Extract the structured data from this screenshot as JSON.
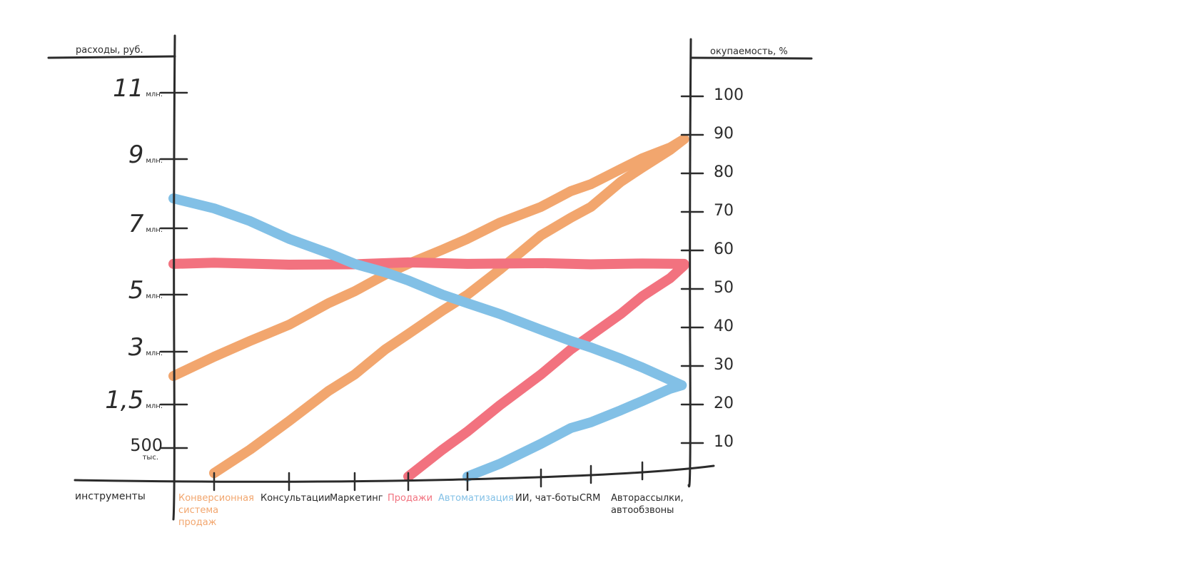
{
  "chart_data": {
    "type": "line",
    "left_axis": {
      "title": "расходы, руб.",
      "ticks": [
        {
          "value": "11",
          "unit": "млн."
        },
        {
          "value": "9",
          "unit": "млн."
        },
        {
          "value": "7",
          "unit": "млн."
        },
        {
          "value": "5",
          "unit": "млн."
        },
        {
          "value": "3",
          "unit": "млн."
        },
        {
          "value": "1,5",
          "unit": "млн."
        },
        {
          "value": "500",
          "unit": "тыс."
        }
      ]
    },
    "right_axis": {
      "title": "окупаемость, %",
      "ticks": [
        100,
        90,
        80,
        70,
        60,
        50,
        40,
        30,
        20,
        10
      ],
      "ylim": [
        0,
        100
      ]
    },
    "x_axis": {
      "title": "инструменты",
      "categories": [
        {
          "label": "Конверсионная\nсистема\nпродаж",
          "color": "#F2A66E"
        },
        {
          "label": "Консультации",
          "color": "#2b2b2b"
        },
        {
          "label": "Маркетинг",
          "color": "#2b2b2b"
        },
        {
          "label": "Продажи",
          "color": "#F2727F"
        },
        {
          "label": "Автоматизация",
          "color": "#82C0E6"
        },
        {
          "label": "ИИ, чат-боты",
          "color": "#2b2b2b"
        },
        {
          "label": "CRM",
          "color": "#2b2b2b"
        },
        {
          "label": "Авторассылки,\nавтообзвоны",
          "color": "#2b2b2b"
        }
      ]
    },
    "series_note": "x = category position (0 = left axis, 1..8 = categories, 9 = right axis); y = right-axis percent scale",
    "series": [
      {
        "name": "orange-cost",
        "color": "#F2A66E",
        "points": [
          [
            0,
            27.4
          ],
          [
            1,
            32.4
          ],
          [
            1.48,
            36.5
          ],
          [
            2,
            40.7
          ],
          [
            2.6,
            46.3
          ],
          [
            3,
            49.4
          ],
          [
            3.57,
            53.7
          ],
          [
            4,
            56.5
          ],
          [
            4.58,
            60.2
          ],
          [
            5,
            63
          ],
          [
            5.44,
            67.2
          ],
          [
            6,
            71.3
          ],
          [
            6.6,
            75.4
          ],
          [
            7,
            77.2
          ],
          [
            7.58,
            81.1
          ],
          [
            8,
            83.9
          ],
          [
            8.6,
            86.7
          ],
          [
            8.9,
            88.9
          ]
        ]
      },
      {
        "name": "orange-roi",
        "color": "#F2A66E",
        "points": [
          [
            1,
            2.2
          ],
          [
            1.48,
            8.3
          ],
          [
            2,
            15.7
          ],
          [
            2.6,
            23.5
          ],
          [
            3,
            27.8
          ],
          [
            3.57,
            34.3
          ],
          [
            4,
            38.3
          ],
          [
            4.58,
            44.4
          ],
          [
            5,
            48.5
          ],
          [
            5.44,
            55
          ],
          [
            6,
            63.9
          ],
          [
            6.6,
            68.5
          ],
          [
            7,
            71.3
          ],
          [
            7.58,
            77.8
          ],
          [
            8,
            81.5
          ],
          [
            8.6,
            86.1
          ],
          [
            8.9,
            88.9
          ]
        ]
      },
      {
        "name": "red-cost",
        "color": "#F2727F",
        "points": [
          [
            0,
            56.5
          ],
          [
            1,
            56.8
          ],
          [
            2,
            56.3
          ],
          [
            3,
            56.4
          ],
          [
            4,
            56.9
          ],
          [
            5,
            56.5
          ],
          [
            6,
            56.7
          ],
          [
            7,
            56.4
          ],
          [
            8,
            56.6
          ],
          [
            8.9,
            56.5
          ]
        ]
      },
      {
        "name": "red-roi",
        "color": "#F2727F",
        "points": [
          [
            4,
            1.3
          ],
          [
            4.58,
            8.3
          ],
          [
            5,
            13
          ],
          [
            5.44,
            19.8
          ],
          [
            6,
            27.8
          ],
          [
            6.6,
            34.3
          ],
          [
            7,
            38
          ],
          [
            7.58,
            43.5
          ],
          [
            8,
            48.1
          ],
          [
            8.6,
            52.8
          ],
          [
            8.9,
            56.1
          ]
        ]
      },
      {
        "name": "blue-cost",
        "color": "#82C0E6",
        "points": [
          [
            0,
            73.5
          ],
          [
            1,
            70.9
          ],
          [
            1.48,
            67.6
          ],
          [
            2,
            63
          ],
          [
            2.6,
            59.3
          ],
          [
            3,
            56.5
          ],
          [
            3.57,
            54.3
          ],
          [
            4,
            52.2
          ],
          [
            4.58,
            48.5
          ],
          [
            5,
            46.3
          ],
          [
            5.44,
            43.5
          ],
          [
            6,
            39.4
          ],
          [
            6.6,
            36.5
          ],
          [
            7,
            34.8
          ],
          [
            7.58,
            31.9
          ],
          [
            8,
            29.6
          ],
          [
            8.85,
            25
          ]
        ]
      },
      {
        "name": "blue-roi",
        "color": "#82C0E6",
        "points": [
          [
            5,
            1.3
          ],
          [
            5.44,
            4.6
          ],
          [
            6,
            9.8
          ],
          [
            6.6,
            13.9
          ],
          [
            7,
            15.4
          ],
          [
            7.58,
            18.5
          ],
          [
            8,
            20.9
          ],
          [
            8.6,
            24.1
          ],
          [
            8.85,
            25
          ]
        ]
      }
    ]
  }
}
